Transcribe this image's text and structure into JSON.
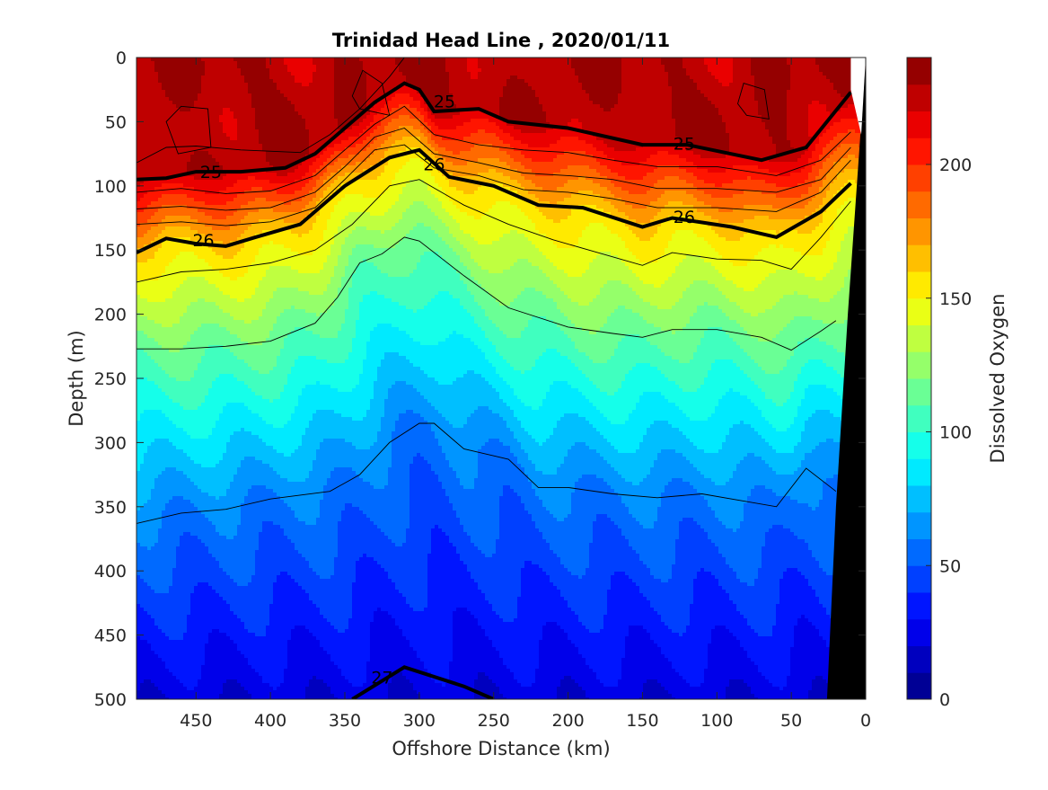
{
  "chart_data": {
    "type": "heatmap",
    "title": "Trinidad Head Line , 2020/01/11",
    "xlabel": "Offshore Distance (km)",
    "ylabel": "Depth (m)",
    "colorbar_label": "Dissolved Oxygen",
    "xlim": [
      490,
      0
    ],
    "ylim": [
      0,
      500
    ],
    "x_ticks": [
      450,
      400,
      350,
      300,
      250,
      200,
      150,
      100,
      50,
      0
    ],
    "y_ticks": [
      0,
      50,
      100,
      150,
      200,
      250,
      300,
      350,
      400,
      450,
      500
    ],
    "colorbar_ticks": [
      0,
      50,
      100,
      150,
      200
    ],
    "colorbar_range": [
      0,
      240
    ],
    "colormap": "jet",
    "bathymetry_color": "#000000",
    "isopycnals": [
      {
        "label": "25",
        "style": "thick",
        "points": [
          [
            490,
            95
          ],
          [
            470,
            94
          ],
          [
            450,
            89
          ],
          [
            420,
            89
          ],
          [
            390,
            86
          ],
          [
            370,
            75
          ],
          [
            350,
            55
          ],
          [
            330,
            35
          ],
          [
            310,
            20
          ],
          [
            300,
            25
          ],
          [
            290,
            42
          ],
          [
            260,
            40
          ],
          [
            240,
            50
          ],
          [
            200,
            55
          ],
          [
            150,
            68
          ],
          [
            120,
            68
          ],
          [
            70,
            80
          ],
          [
            40,
            70
          ],
          [
            10,
            27
          ]
        ],
        "label_positions": [
          [
            440,
            89
          ],
          [
            283,
            34
          ],
          [
            122,
            67
          ]
        ]
      },
      {
        "label": "26",
        "style": "thick",
        "points": [
          [
            490,
            152
          ],
          [
            470,
            141
          ],
          [
            450,
            145
          ],
          [
            430,
            147
          ],
          [
            410,
            140
          ],
          [
            380,
            130
          ],
          [
            350,
            100
          ],
          [
            320,
            78
          ],
          [
            300,
            72
          ],
          [
            280,
            93
          ],
          [
            250,
            100
          ],
          [
            220,
            115
          ],
          [
            190,
            117
          ],
          [
            150,
            132
          ],
          [
            130,
            125
          ],
          [
            90,
            132
          ],
          [
            60,
            140
          ],
          [
            30,
            120
          ],
          [
            10,
            98
          ]
        ],
        "label_positions": [
          [
            445,
            142
          ],
          [
            290,
            83
          ],
          [
            122,
            124
          ]
        ]
      },
      {
        "label": "27",
        "style": "thick",
        "points": [
          [
            345,
            500
          ],
          [
            310,
            475
          ],
          [
            270,
            490
          ],
          [
            250,
            500
          ]
        ],
        "label_positions": [
          [
            325,
            483
          ]
        ]
      }
    ],
    "thin_contours": [
      [
        [
          490,
          82
        ],
        [
          470,
          70
        ],
        [
          450,
          69
        ],
        [
          420,
          72
        ],
        [
          380,
          74
        ],
        [
          360,
          60
        ],
        [
          340,
          40
        ],
        [
          320,
          15
        ],
        [
          310,
          0
        ]
      ],
      [
        [
          490,
          105
        ],
        [
          460,
          102
        ],
        [
          430,
          106
        ],
        [
          400,
          104
        ],
        [
          370,
          92
        ],
        [
          350,
          72
        ],
        [
          330,
          52
        ],
        [
          310,
          38
        ],
        [
          290,
          60
        ],
        [
          260,
          68
        ],
        [
          230,
          72
        ],
        [
          200,
          74
        ],
        [
          170,
          80
        ],
        [
          140,
          85
        ],
        [
          100,
          85
        ],
        [
          60,
          92
        ],
        [
          30,
          80
        ],
        [
          10,
          58
        ]
      ],
      [
        [
          490,
          118
        ],
        [
          460,
          116
        ],
        [
          430,
          119
        ],
        [
          400,
          117
        ],
        [
          370,
          105
        ],
        [
          350,
          85
        ],
        [
          330,
          62
        ],
        [
          310,
          55
        ],
        [
          290,
          75
        ],
        [
          260,
          82
        ],
        [
          230,
          90
        ],
        [
          200,
          92
        ],
        [
          170,
          95
        ],
        [
          140,
          102
        ],
        [
          100,
          102
        ],
        [
          60,
          105
        ],
        [
          30,
          95
        ],
        [
          10,
          70
        ]
      ],
      [
        [
          490,
          130
        ],
        [
          460,
          128
        ],
        [
          430,
          131
        ],
        [
          400,
          128
        ],
        [
          370,
          117
        ],
        [
          350,
          95
        ],
        [
          330,
          72
        ],
        [
          310,
          68
        ],
        [
          290,
          86
        ],
        [
          260,
          92
        ],
        [
          230,
          103
        ],
        [
          200,
          105
        ],
        [
          170,
          110
        ],
        [
          140,
          117
        ],
        [
          100,
          117
        ],
        [
          60,
          120
        ],
        [
          30,
          105
        ],
        [
          10,
          80
        ]
      ],
      [
        [
          490,
          175
        ],
        [
          460,
          167
        ],
        [
          430,
          165
        ],
        [
          400,
          160
        ],
        [
          370,
          150
        ],
        [
          345,
          130
        ],
        [
          320,
          100
        ],
        [
          300,
          95
        ],
        [
          270,
          115
        ],
        [
          240,
          130
        ],
        [
          210,
          142
        ],
        [
          180,
          152
        ],
        [
          150,
          162
        ],
        [
          130,
          152
        ],
        [
          100,
          157
        ],
        [
          70,
          158
        ],
        [
          50,
          165
        ],
        [
          30,
          140
        ],
        [
          10,
          112
        ]
      ],
      [
        [
          490,
          227
        ],
        [
          460,
          227
        ],
        [
          430,
          225
        ],
        [
          400,
          221
        ],
        [
          370,
          207
        ],
        [
          355,
          187
        ],
        [
          340,
          160
        ],
        [
          325,
          153
        ],
        [
          310,
          140
        ],
        [
          300,
          143
        ],
        [
          270,
          170
        ],
        [
          240,
          195
        ],
        [
          200,
          210
        ],
        [
          170,
          215
        ],
        [
          150,
          218
        ],
        [
          130,
          212
        ],
        [
          100,
          212
        ],
        [
          70,
          218
        ],
        [
          50,
          228
        ],
        [
          30,
          213
        ],
        [
          20,
          205
        ]
      ],
      [
        [
          490,
          363
        ],
        [
          460,
          355
        ],
        [
          430,
          352
        ],
        [
          400,
          344
        ],
        [
          360,
          338
        ],
        [
          340,
          325
        ],
        [
          320,
          300
        ],
        [
          300,
          285
        ],
        [
          290,
          285
        ],
        [
          270,
          305
        ],
        [
          240,
          313
        ],
        [
          220,
          335
        ],
        [
          200,
          335
        ],
        [
          170,
          340
        ],
        [
          140,
          343
        ],
        [
          110,
          340
        ],
        [
          80,
          346
        ],
        [
          60,
          350
        ],
        [
          40,
          320
        ],
        [
          20,
          338
        ]
      ]
    ],
    "closed_contours": [
      [
        [
          462,
          75
        ],
        [
          440,
          70
        ],
        [
          442,
          40
        ],
        [
          460,
          38
        ],
        [
          470,
          50
        ],
        [
          462,
          75
        ]
      ],
      [
        [
          340,
          40
        ],
        [
          320,
          45
        ],
        [
          325,
          20
        ],
        [
          338,
          10
        ],
        [
          345,
          30
        ],
        [
          340,
          40
        ]
      ],
      [
        [
          80,
          45
        ],
        [
          65,
          48
        ],
        [
          68,
          25
        ],
        [
          82,
          20
        ],
        [
          86,
          36
        ],
        [
          80,
          45
        ]
      ]
    ]
  }
}
